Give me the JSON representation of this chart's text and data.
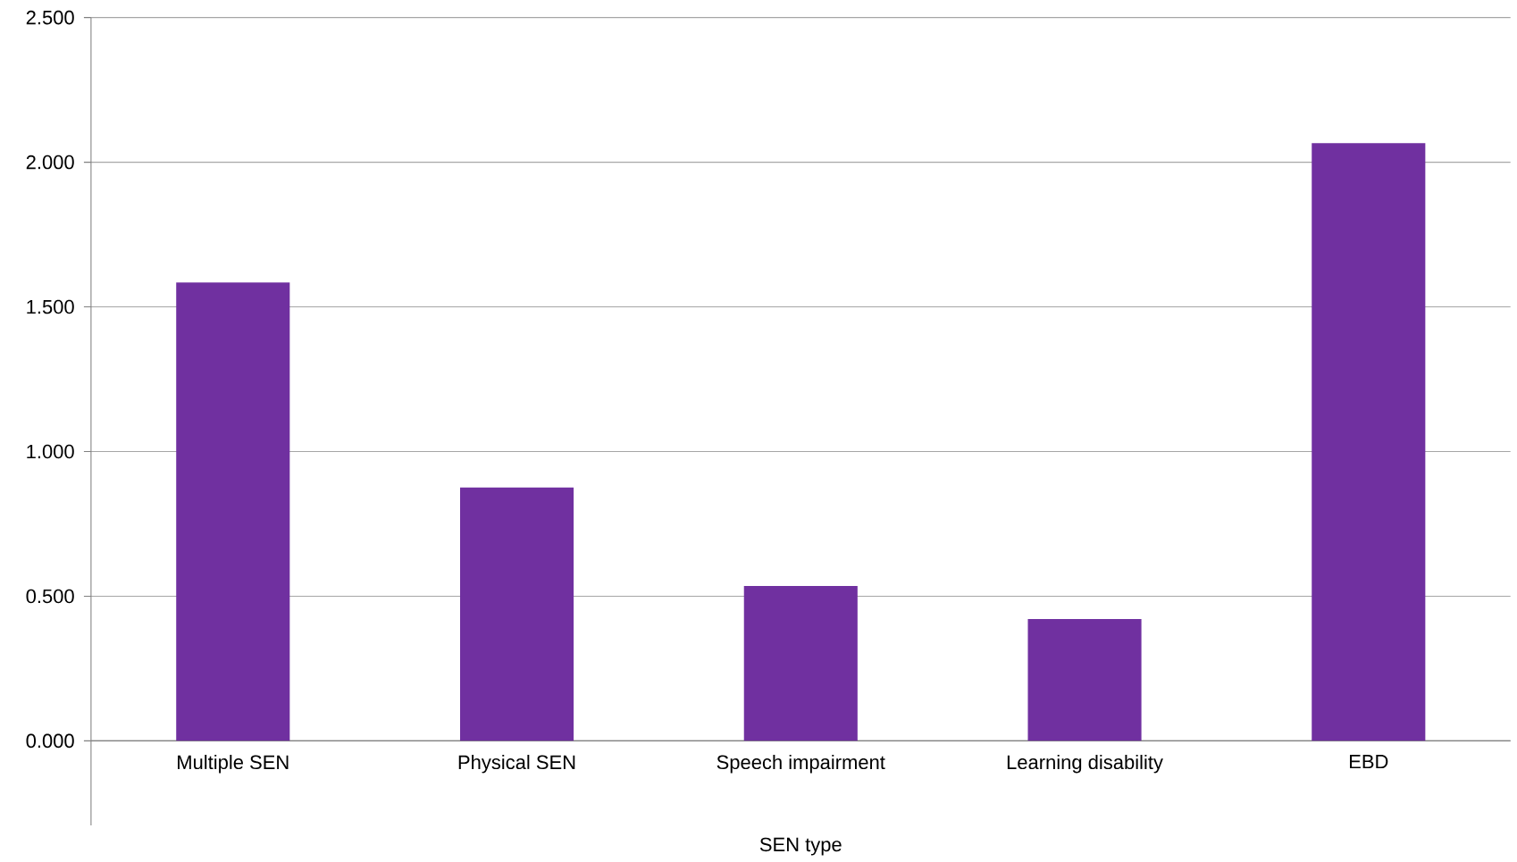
{
  "chart_data": {
    "type": "bar",
    "xlabel": "SEN type",
    "categories": [
      "Multiple SEN",
      "Physical SEN",
      "Speech impairment",
      "Learning disability",
      "EBD"
    ],
    "values": [
      1.584,
      0.876,
      0.535,
      0.421,
      2.066
    ],
    "color": "#7030a0",
    "ylim": [
      0,
      2.5
    ],
    "yticks": [
      {
        "value": 0,
        "label": "0.000"
      },
      {
        "value": 0.5,
        "label": "0.500"
      },
      {
        "value": 1,
        "label": "1.000"
      },
      {
        "value": 1.5,
        "label": "1.500"
      },
      {
        "value": 2,
        "label": "2.000"
      },
      {
        "value": 2.5,
        "label": "2.500"
      }
    ],
    "grid": "y"
  }
}
